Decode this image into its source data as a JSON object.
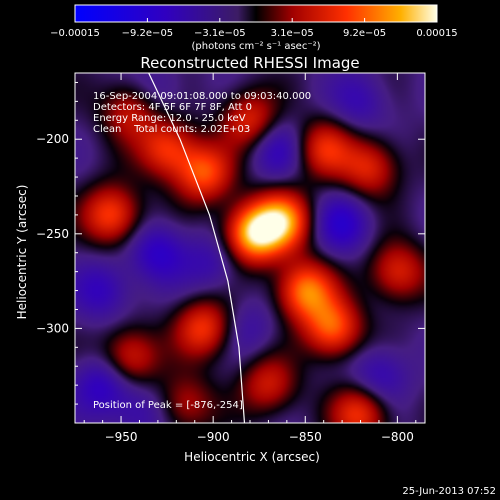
{
  "chart_data": {
    "type": "heatmap",
    "title": "Reconstructed RHESSI Image",
    "xlabel": "Heliocentric X (arcsec)",
    "ylabel": "Heliocentric Y (arcsec)",
    "xlim": [
      -975,
      -785
    ],
    "ylim": [
      -350,
      -165
    ],
    "x_ticks": [
      {
        "value": -950,
        "label": "−950"
      },
      {
        "value": -900,
        "label": "−900"
      },
      {
        "value": -850,
        "label": "−850"
      },
      {
        "value": -800,
        "label": "−800"
      }
    ],
    "y_ticks": [
      {
        "value": -200,
        "label": "−200"
      },
      {
        "value": -250,
        "label": "−250"
      },
      {
        "value": -300,
        "label": "−300"
      }
    ],
    "annotations": [
      "16-Sep-2004 09:01:08.000 to 09:03:40.000",
      "Detectors: 4F 5F 6F 7F 8F, Att 0",
      "Energy Range: 12.0 - 25.0 keV",
      "Clean    Total counts: 2.02E+03"
    ],
    "peak_label": "Position of Peak = [-876,-254]",
    "peak": {
      "x": -876,
      "y": -254
    },
    "colorbar": {
      "min": -0.00015,
      "max": 0.00015,
      "tick_labels": [
        "−0.00015",
        "−9.2e−05",
        "−3.1e−05",
        "3.1e−05",
        "9.2e−05",
        "0.00015"
      ],
      "unit_label": "(photons cm⁻² s⁻¹ asec⁻²)"
    },
    "limb": [
      [
        -935,
        -165
      ],
      [
        -918,
        -200
      ],
      [
        -902,
        -240
      ],
      [
        -892,
        -275
      ],
      [
        -886,
        -310
      ],
      [
        -883,
        -350
      ]
    ],
    "sources": [
      {
        "x": -878,
        "y": -250,
        "v": 0.00015
      },
      {
        "x": -862,
        "y": -243,
        "v": 0.00012
      },
      {
        "x": -905,
        "y": -218,
        "v": 0.0001
      },
      {
        "x": -925,
        "y": -205,
        "v": 9e-05
      },
      {
        "x": -955,
        "y": -240,
        "v": 0.0001
      },
      {
        "x": -945,
        "y": -185,
        "v": 7e-05
      },
      {
        "x": -880,
        "y": -190,
        "v": 8e-05
      },
      {
        "x": -840,
        "y": -205,
        "v": 8e-05
      },
      {
        "x": -815,
        "y": -215,
        "v": 8e-05
      },
      {
        "x": -850,
        "y": -280,
        "v": 0.00012
      },
      {
        "x": -835,
        "y": -300,
        "v": 0.00011
      },
      {
        "x": -905,
        "y": -300,
        "v": 9e-05
      },
      {
        "x": -945,
        "y": -315,
        "v": 8e-05
      },
      {
        "x": -820,
        "y": -345,
        "v": 9e-05
      },
      {
        "x": -870,
        "y": -330,
        "v": 7e-05
      },
      {
        "x": -800,
        "y": -270,
        "v": 8e-05
      },
      {
        "x": -915,
        "y": -340,
        "v": 6e-05
      },
      {
        "x": -960,
        "y": -280,
        "v": -5e-05
      },
      {
        "x": -930,
        "y": -260,
        "v": -6e-05
      },
      {
        "x": -830,
        "y": -245,
        "v": -6e-05
      },
      {
        "x": -900,
        "y": -265,
        "v": -4e-05
      },
      {
        "x": -865,
        "y": -205,
        "v": -5e-05
      },
      {
        "x": -930,
        "y": -175,
        "v": -3e-05
      },
      {
        "x": -820,
        "y": -180,
        "v": -4e-05
      },
      {
        "x": -810,
        "y": -325,
        "v": -5e-05
      },
      {
        "x": -880,
        "y": -300,
        "v": -3e-05
      },
      {
        "x": -940,
        "y": -345,
        "v": -4e-05
      },
      {
        "x": -960,
        "y": -330,
        "v": -6e-05
      }
    ]
  },
  "footer": {
    "timestamp": "25-Jun-2013 07:52"
  }
}
